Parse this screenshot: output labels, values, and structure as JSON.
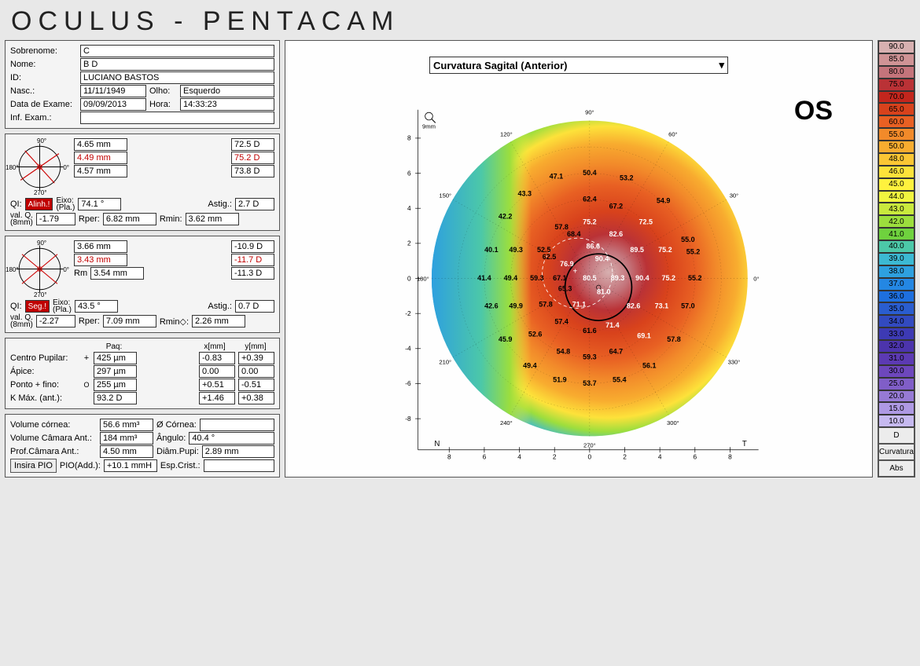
{
  "title": "OCULUS  -  PENTACAM",
  "patient": {
    "sobrenome_lbl": "Sobrenome:",
    "sobrenome": "C",
    "nome_lbl": "Nome:",
    "nome": "B      D",
    "id_lbl": "ID:",
    "id": "LUCIANO BASTOS",
    "nasc_lbl": "Nasc.:",
    "nasc": "11/11/1949",
    "olho_lbl": "Olho:",
    "olho": "Esquerdo",
    "exame_lbl": "Data de Exame:",
    "exame": "09/09/2013",
    "hora_lbl": "Hora:",
    "hora": "14:33:23",
    "inf_lbl": "Inf. Exam.:",
    "inf": ""
  },
  "k1": {
    "r1": "4.65 mm",
    "d1": "72.5 D",
    "r2": "4.49 mm",
    "d2": "75.2 D",
    "r3": "4.57 mm",
    "d3": "73.8 D",
    "qi_lbl": "QI:",
    "qi_tag": "Alinh.!",
    "eixo_lbl": "Eixo:\n(Pla.)",
    "eixo": "74.1 °",
    "astig_lbl": "Astig.:",
    "astig": "2.7 D",
    "valq_lbl": "val. Q.\n(8mm)",
    "valq": "-1.79",
    "rper_lbl": "Rper:",
    "rper": "6.82 mm",
    "rmin_lbl": "Rmin:",
    "rmin": "3.62 mm"
  },
  "k2": {
    "r1": "3.66 mm",
    "d1": "-10.9 D",
    "r2": "3.43 mm",
    "d2": "-11.7 D",
    "rm_lbl": "Rm",
    "rm": "3.54 mm",
    "d3": "-11.3 D",
    "qi_lbl": "QI:",
    "qi_tag": "Seg.!",
    "eixo_lbl": "Eixo:\n(Pla.)",
    "eixo": "43.5 °",
    "astig_lbl": "Astig.:",
    "astig": "0.7 D",
    "valq_lbl": "val. Q.\n(8mm)",
    "valq": "-2.27",
    "rper_lbl": "Rper:",
    "rper": "7.09 mm",
    "rmin_lbl": "Rmin◇:",
    "rmin": "2.26 mm"
  },
  "pachy": {
    "paq_lbl": "Paq:",
    "x_lbl": "x[mm]",
    "y_lbl": "y[mm]",
    "centro_lbl": "Centro Pupilar:",
    "centro_sym": "+",
    "centro_p": "425 µm",
    "centro_x": "-0.83",
    "centro_y": "+0.39",
    "apice_lbl": "Ápice:",
    "apice_p": "297 µm",
    "apice_x": "0.00",
    "apice_y": "0.00",
    "ponto_lbl": "Ponto + fino:",
    "ponto_sym": "O",
    "ponto_p": "255 µm",
    "ponto_x": "+0.51",
    "ponto_y": "-0.51",
    "kmax_lbl": "K Máx. (ant.):",
    "kmax": "93.2 D",
    "kmax_x": "+1.46",
    "kmax_y": "+0.38"
  },
  "chamber": {
    "vol_cornea_lbl": "Volume córnea:",
    "vol_cornea": "56.6 mm³",
    "diam_cornea_lbl": "Ø Córnea:",
    "diam_cornea": "",
    "vol_camara_lbl": "Volume Câmara Ant.:",
    "vol_camara": "184 mm³",
    "angulo_lbl": "Ângulo:",
    "angulo": "40.4 °",
    "prof_lbl": "Prof.Câmara Ant.:",
    "prof": "4.50 mm",
    "diam_pupi_lbl": "Diâm.Pupi:",
    "diam_pupi": "2.89 mm",
    "insira_btn": "Insira PIO",
    "pioadd_lbl": "PIO(Add.):",
    "pioadd": "+10.1 mmH",
    "esp_lbl": "Esp.Crist.:",
    "esp": ""
  },
  "map": {
    "dropdown": "Curvatura Sagital (Anterior)",
    "eye": "OS",
    "n_label": "N",
    "t_label": "T",
    "scale_mm": "9mm",
    "axis_ticks": [
      "-8",
      "-6",
      "-4",
      "-2",
      "0",
      "2",
      "4",
      "6",
      "8"
    ],
    "axis_ticks_x": [
      "8",
      "6",
      "4",
      "2",
      "0",
      "2",
      "4",
      "6",
      "8"
    ],
    "angle_labels": [
      {
        "a": 0,
        "t": "0°"
      },
      {
        "a": 30,
        "t": "30°"
      },
      {
        "a": 60,
        "t": "60°"
      },
      {
        "a": 90,
        "t": "90°"
      },
      {
        "a": 120,
        "t": "120°"
      },
      {
        "a": 150,
        "t": "150°"
      },
      {
        "a": 180,
        "t": "180°"
      },
      {
        "a": 210,
        "t": "210°"
      },
      {
        "a": 240,
        "t": "240°"
      },
      {
        "a": 270,
        "t": "270°"
      },
      {
        "a": 300,
        "t": "300°"
      },
      {
        "a": 330,
        "t": "330°"
      }
    ],
    "values": [
      {
        "x": 0.0,
        "y": 0.0,
        "v": "80.5",
        "w": true
      },
      {
        "x": -1.3,
        "y": 0.8,
        "v": "76.9",
        "w": true
      },
      {
        "x": 0.7,
        "y": 1.1,
        "v": "90.4",
        "w": true
      },
      {
        "x": 0.2,
        "y": 1.8,
        "v": "86.6",
        "w": true
      },
      {
        "x": 1.6,
        "y": 0.0,
        "v": "89.3",
        "w": true
      },
      {
        "x": 0.8,
        "y": -0.8,
        "v": "81.0",
        "w": true
      },
      {
        "x": -0.6,
        "y": -1.5,
        "v": "71.1",
        "w": true
      },
      {
        "x": -1.4,
        "y": -0.6,
        "v": "65.3",
        "w": false
      },
      {
        "x": -1.7,
        "y": 0.0,
        "v": "67.1",
        "w": false
      },
      {
        "x": -2.3,
        "y": 1.2,
        "v": "62.5",
        "w": false
      },
      {
        "x": -0.9,
        "y": 2.5,
        "v": "68.4",
        "w": false
      },
      {
        "x": 0.0,
        "y": 3.2,
        "v": "75.2",
        "w": true
      },
      {
        "x": 1.5,
        "y": 2.5,
        "v": "82.6",
        "w": true
      },
      {
        "x": 2.7,
        "y": 1.6,
        "v": "89.5",
        "w": true
      },
      {
        "x": 3.0,
        "y": 0.0,
        "v": "90.4",
        "w": true
      },
      {
        "x": 2.5,
        "y": -1.6,
        "v": "82.6",
        "w": true
      },
      {
        "x": 1.3,
        "y": -2.7,
        "v": "71.4",
        "w": true
      },
      {
        "x": 0.0,
        "y": -3.0,
        "v": "61.6",
        "w": false
      },
      {
        "x": -1.6,
        "y": -2.5,
        "v": "57.4",
        "w": false
      },
      {
        "x": -2.5,
        "y": -1.5,
        "v": "57.8",
        "w": false
      },
      {
        "x": -3.0,
        "y": 0.0,
        "v": "59.3",
        "w": false
      },
      {
        "x": -2.6,
        "y": 1.6,
        "v": "52.5",
        "w": false
      },
      {
        "x": -1.6,
        "y": 2.9,
        "v": "57.8",
        "w": false
      },
      {
        "x": 0.0,
        "y": 4.5,
        "v": "62.4",
        "w": false
      },
      {
        "x": 1.5,
        "y": 4.1,
        "v": "67.2",
        "w": false
      },
      {
        "x": 3.2,
        "y": 3.2,
        "v": "72.5",
        "w": true
      },
      {
        "x": 4.3,
        "y": 1.6,
        "v": "75.2",
        "w": true
      },
      {
        "x": 4.5,
        "y": 0.0,
        "v": "75.2",
        "w": true
      },
      {
        "x": 4.1,
        "y": -1.6,
        "v": "73.1",
        "w": true
      },
      {
        "x": 3.1,
        "y": -3.3,
        "v": "69.1",
        "w": true
      },
      {
        "x": 1.5,
        "y": -4.2,
        "v": "64.7",
        "w": false
      },
      {
        "x": 0.0,
        "y": -4.5,
        "v": "59.3",
        "w": false
      },
      {
        "x": -1.5,
        "y": -4.2,
        "v": "54.8",
        "w": false
      },
      {
        "x": -3.1,
        "y": -3.2,
        "v": "52.6",
        "w": false
      },
      {
        "x": -4.2,
        "y": -1.6,
        "v": "49.9",
        "w": false
      },
      {
        "x": -4.5,
        "y": 0.0,
        "v": "49.4",
        "w": false
      },
      {
        "x": -4.2,
        "y": 1.6,
        "v": "49.3",
        "w": false
      },
      {
        "x": 0.0,
        "y": 6.0,
        "v": "50.4",
        "w": false
      },
      {
        "x": 2.1,
        "y": 5.7,
        "v": "53.2",
        "w": false
      },
      {
        "x": 4.2,
        "y": 4.4,
        "v": "54.9",
        "w": false
      },
      {
        "x": 5.6,
        "y": 2.2,
        "v": "55.0",
        "w": false
      },
      {
        "x": 5.9,
        "y": 1.5,
        "v": "55.2",
        "w": false
      },
      {
        "x": 6.0,
        "y": 0.0,
        "v": "55.2",
        "w": false
      },
      {
        "x": 5.6,
        "y": -1.6,
        "v": "57.0",
        "w": false
      },
      {
        "x": 4.8,
        "y": -3.5,
        "v": "57.8",
        "w": false
      },
      {
        "x": 3.4,
        "y": -5.0,
        "v": "56.1",
        "w": false
      },
      {
        "x": 1.7,
        "y": -5.8,
        "v": "55.4",
        "w": false
      },
      {
        "x": 0.0,
        "y": -6.0,
        "v": "53.7",
        "w": false
      },
      {
        "x": -1.7,
        "y": -5.8,
        "v": "51.9",
        "w": false
      },
      {
        "x": -3.4,
        "y": -5.0,
        "v": "49.4",
        "w": false
      },
      {
        "x": -4.8,
        "y": -3.5,
        "v": "45.9",
        "w": false
      },
      {
        "x": -5.6,
        "y": -1.6,
        "v": "42.6",
        "w": false
      },
      {
        "x": -6.0,
        "y": 0.0,
        "v": "41.4",
        "w": false
      },
      {
        "x": -5.6,
        "y": 1.6,
        "v": "40.1",
        "w": false
      },
      {
        "x": -4.8,
        "y": 3.5,
        "v": "42.2",
        "w": false
      },
      {
        "x": -3.7,
        "y": 4.8,
        "v": "43.3",
        "w": false
      },
      {
        "x": -1.9,
        "y": 5.8,
        "v": "47.1",
        "w": false
      }
    ],
    "gradient_colors": {
      "90": "#d7b0b0",
      "85": "#cf9395",
      "80": "#c4747b",
      "75": "#ba3236",
      "70": "#c3261d",
      "65": "#d8421c",
      "60": "#e86023",
      "55": "#f28a2a",
      "50": "#f8ac2f",
      "48": "#fbc634",
      "46": "#fde23a",
      "45": "#fff23e",
      "44": "#f1f53f",
      "43": "#c9e93d",
      "42": "#9cde3d",
      "41": "#6fd23e",
      "40": "#4cc8a8",
      "39": "#3cb9d3",
      "38": "#2ea0df",
      "37": "#2487e3",
      "36": "#1e6fde",
      "35": "#2a5dcf",
      "34": "#324ac0",
      "33": "#3d3ab4",
      "32": "#4c34ac",
      "31": "#5c3ab3",
      "30": "#6d47bc",
      "25": "#805ec8",
      "20": "#967ad5",
      "15": "#ae99e3",
      "10": "#c6b9f0"
    }
  },
  "legend": {
    "values": [
      "90.0",
      "85.0",
      "80.0",
      "75.0",
      "70.0",
      "65.0",
      "60.0",
      "55.0",
      "50.0",
      "48.0",
      "46.0",
      "45.0",
      "44.0",
      "43.0",
      "42.0",
      "41.0",
      "40.0",
      "39.0",
      "38.0",
      "37.0",
      "36.0",
      "35.0",
      "34.0",
      "33.0",
      "32.0",
      "31.0",
      "30.0",
      "25.0",
      "20.0",
      "15.0",
      "10.0"
    ],
    "colors": [
      "#d7b0b0",
      "#cf9395",
      "#c4747b",
      "#ba3236",
      "#c3261d",
      "#d8421c",
      "#e86023",
      "#f28a2a",
      "#f8ac2f",
      "#fbc634",
      "#fde23a",
      "#fff23e",
      "#f1f53f",
      "#c9e93d",
      "#9cde3d",
      "#6fd23e",
      "#4cc8a8",
      "#3cb9d3",
      "#2ea0df",
      "#2487e3",
      "#1e6fde",
      "#2a5dcf",
      "#324ac0",
      "#3d3ab4",
      "#4c34ac",
      "#5c3ab3",
      "#6d47bc",
      "#805ec8",
      "#967ad5",
      "#ae99e3",
      "#c6b9f0"
    ],
    "unit": "D",
    "btn1": "Curvatura",
    "btn2": "Abs"
  }
}
